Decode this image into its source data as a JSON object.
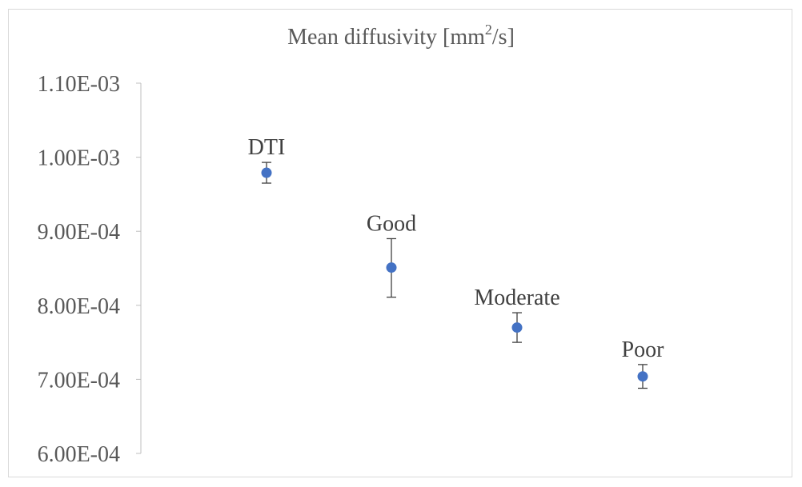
{
  "chart_data": {
    "type": "scatter",
    "title_prefix": "Mean diffusivity [mm",
    "title_sup": "2",
    "title_suffix": "/s]",
    "xlabel": "",
    "ylabel": "",
    "ylim": [
      0.0006,
      0.0011
    ],
    "y_ticks": [
      {
        "value": 0.0011,
        "label": "1.10E-03"
      },
      {
        "value": 0.001,
        "label": "1.00E-03"
      },
      {
        "value": 0.0009,
        "label": "9.00E-04"
      },
      {
        "value": 0.0008,
        "label": "8.00E-04"
      },
      {
        "value": 0.0007,
        "label": "7.00E-04"
      },
      {
        "value": 0.0006,
        "label": "6.00E-04"
      }
    ],
    "points": [
      {
        "label": "DTI",
        "y": 0.000979,
        "err_low": 0.000965,
        "err_high": 0.000993
      },
      {
        "label": "Good",
        "y": 0.000851,
        "err_low": 0.000811,
        "err_high": 0.00089
      },
      {
        "label": "Moderate",
        "y": 0.00077,
        "err_low": 0.00075,
        "err_high": 0.00079
      },
      {
        "label": "Poor",
        "y": 0.000704,
        "err_low": 0.000688,
        "err_high": 0.00072
      }
    ],
    "marker_color": "#4472c4",
    "grid": false,
    "legend": "none"
  }
}
